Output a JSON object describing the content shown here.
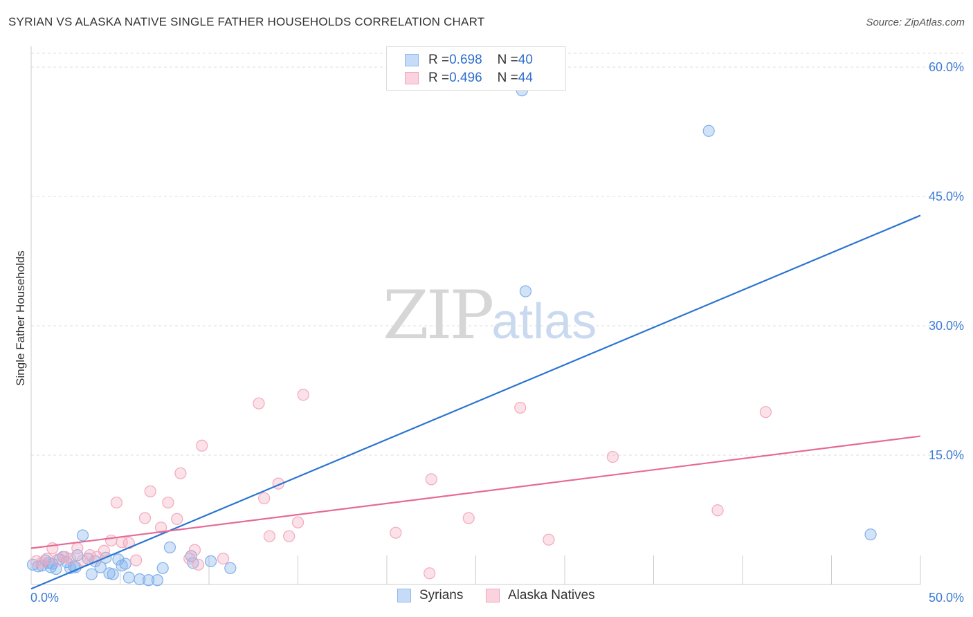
{
  "header": {
    "title": "SYRIAN VS ALASKA NATIVE SINGLE FATHER HOUSEHOLDS CORRELATION CHART",
    "source": "Source: ZipAtlas.com"
  },
  "watermark": {
    "zip": "ZIP",
    "atlas": "atlas"
  },
  "legend_top": {
    "rows": [
      {
        "r_label": "R = ",
        "r_value": "0.698",
        "n_label": "N = ",
        "n_value": "40",
        "color": "#a9c8f0"
      },
      {
        "r_label": "R = ",
        "r_value": "0.496",
        "n_label": "N = ",
        "n_value": "44",
        "color": "#f5b8c8"
      }
    ]
  },
  "legend_bottom": {
    "items": [
      {
        "label": "Syrians",
        "color": "#a9c8f0"
      },
      {
        "label": "Alaska Natives",
        "color": "#f5b8c8"
      }
    ]
  },
  "chart_data": {
    "type": "scatter",
    "title": "SYRIAN VS ALASKA NATIVE SINGLE FATHER HOUSEHOLDS CORRELATION CHART",
    "xlabel": "",
    "ylabel": "Single Father Households",
    "xlim": [
      0,
      50
    ],
    "ylim": [
      0,
      60
    ],
    "x_tick_labels": [
      "0.0%",
      "50.0%"
    ],
    "y_tick_values": [
      15,
      30,
      45,
      60
    ],
    "y_tick_labels": [
      "15.0%",
      "30.0%",
      "45.0%",
      "60.0%"
    ],
    "grid": true,
    "legend_position": "top-center",
    "series": [
      {
        "name": "Syrians",
        "color": "#7fb0ea",
        "line_color": "#2a74d0",
        "trend": {
          "x": [
            0,
            50
          ],
          "y": [
            -0.5,
            42.8
          ]
        },
        "points": [
          [
            0.1,
            2.3
          ],
          [
            0.4,
            2.1
          ],
          [
            0.6,
            2.2
          ],
          [
            0.8,
            2.8
          ],
          [
            1.0,
            2.5
          ],
          [
            1.2,
            2.4
          ],
          [
            1.4,
            1.8
          ],
          [
            1.6,
            2.9
          ],
          [
            1.8,
            3.2
          ],
          [
            2.0,
            2.6
          ],
          [
            2.2,
            1.9
          ],
          [
            2.4,
            2.1
          ],
          [
            2.6,
            3.4
          ],
          [
            2.9,
            5.7
          ],
          [
            3.2,
            3.0
          ],
          [
            3.4,
            1.2
          ],
          [
            3.6,
            2.7
          ],
          [
            3.9,
            2.0
          ],
          [
            4.2,
            3.1
          ],
          [
            4.4,
            1.3
          ],
          [
            4.6,
            1.2
          ],
          [
            4.9,
            2.9
          ],
          [
            5.1,
            2.2
          ],
          [
            5.3,
            2.4
          ],
          [
            5.5,
            0.8
          ],
          [
            6.1,
            0.6
          ],
          [
            6.6,
            0.5
          ],
          [
            7.1,
            0.5
          ],
          [
            7.4,
            1.9
          ],
          [
            7.8,
            4.3
          ],
          [
            9.0,
            3.3
          ],
          [
            9.1,
            2.5
          ],
          [
            10.1,
            2.7
          ],
          [
            11.2,
            1.9
          ],
          [
            2.5,
            2.0
          ],
          [
            1.1,
            2.0
          ],
          [
            27.8,
            34.0
          ],
          [
            27.6,
            57.3
          ],
          [
            38.1,
            52.6
          ],
          [
            47.2,
            5.8
          ]
        ]
      },
      {
        "name": "Alaska Natives",
        "color": "#f3a8bd",
        "line_color": "#e66a96",
        "trend": {
          "x": [
            0,
            50
          ],
          "y": [
            4.2,
            17.2
          ]
        },
        "points": [
          [
            0.3,
            2.7
          ],
          [
            0.6,
            2.5
          ],
          [
            0.9,
            3.0
          ],
          [
            1.2,
            4.2
          ],
          [
            1.5,
            2.9
          ],
          [
            1.9,
            3.2
          ],
          [
            2.2,
            3.0
          ],
          [
            2.6,
            4.2
          ],
          [
            2.9,
            2.8
          ],
          [
            3.3,
            3.4
          ],
          [
            3.7,
            3.2
          ],
          [
            4.1,
            3.9
          ],
          [
            4.5,
            5.1
          ],
          [
            4.8,
            9.5
          ],
          [
            5.1,
            4.9
          ],
          [
            5.5,
            4.8
          ],
          [
            5.9,
            2.8
          ],
          [
            6.4,
            7.7
          ],
          [
            6.7,
            10.8
          ],
          [
            7.3,
            6.6
          ],
          [
            7.7,
            9.5
          ],
          [
            8.2,
            7.6
          ],
          [
            8.4,
            12.9
          ],
          [
            8.9,
            3.0
          ],
          [
            9.2,
            4.0
          ],
          [
            9.4,
            2.3
          ],
          [
            9.6,
            16.1
          ],
          [
            10.8,
            3.0
          ],
          [
            12.8,
            21.0
          ],
          [
            13.1,
            10.0
          ],
          [
            13.4,
            5.6
          ],
          [
            13.9,
            11.7
          ],
          [
            14.5,
            5.6
          ],
          [
            15.0,
            7.2
          ],
          [
            15.3,
            22.0
          ],
          [
            20.5,
            6.0
          ],
          [
            22.4,
            1.3
          ],
          [
            22.5,
            12.2
          ],
          [
            24.6,
            7.7
          ],
          [
            27.5,
            20.5
          ],
          [
            29.1,
            5.2
          ],
          [
            32.7,
            14.8
          ],
          [
            38.6,
            8.6
          ],
          [
            41.3,
            20.0
          ]
        ]
      }
    ]
  }
}
